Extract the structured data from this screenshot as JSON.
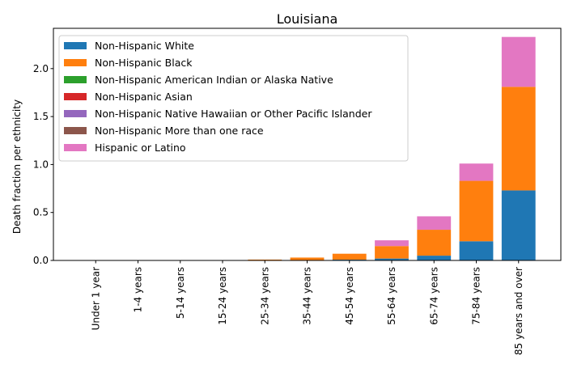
{
  "chart_data": {
    "type": "bar",
    "stacked": true,
    "title": "Louisiana",
    "xlabel": "",
    "ylabel": "Death fraction per ethnicity",
    "ylim": [
      0,
      2.42
    ],
    "yticks": [
      0.0,
      0.5,
      1.0,
      1.5,
      2.0
    ],
    "ytick_labels": [
      "0.0",
      "0.5",
      "1.0",
      "1.5",
      "2.0"
    ],
    "categories": [
      "Under 1 year",
      "1-4 years",
      "5-14 years",
      "15-24 years",
      "25-34 years",
      "35-44 years",
      "45-54 years",
      "55-64 years",
      "65-74 years",
      "75-84 years",
      "85 years and over"
    ],
    "legend_position": "top-left",
    "grid": false,
    "series": [
      {
        "name": "Non-Hispanic White",
        "color": "#1f77b4",
        "values": [
          0,
          0,
          0,
          0,
          0.001,
          0.003,
          0.008,
          0.02,
          0.05,
          0.2,
          0.73
        ]
      },
      {
        "name": "Non-Hispanic Black",
        "color": "#ff7f0e",
        "values": [
          0,
          0,
          0,
          0,
          0.008,
          0.027,
          0.062,
          0.13,
          0.27,
          0.63,
          1.08
        ]
      },
      {
        "name": "Non-Hispanic American Indian or Alaska Native",
        "color": "#2ca02c",
        "values": [
          0,
          0,
          0,
          0,
          0,
          0,
          0,
          0,
          0,
          0,
          0
        ]
      },
      {
        "name": "Non-Hispanic Asian",
        "color": "#d62728",
        "values": [
          0,
          0,
          0,
          0,
          0,
          0,
          0,
          0,
          0,
          0,
          0
        ]
      },
      {
        "name": "Non-Hispanic Native Hawaiian or Other Pacific Islander",
        "color": "#9467bd",
        "values": [
          0,
          0,
          0,
          0,
          0,
          0,
          0,
          0,
          0,
          0,
          0
        ]
      },
      {
        "name": "Non-Hispanic More than one race",
        "color": "#8c564b",
        "values": [
          0,
          0,
          0,
          0,
          0,
          0,
          0,
          0,
          0,
          0,
          0
        ]
      },
      {
        "name": "Hispanic or Latino",
        "color": "#e377c2",
        "values": [
          0,
          0,
          0,
          0,
          0,
          0,
          0,
          0.06,
          0.14,
          0.18,
          0.52
        ]
      }
    ]
  }
}
